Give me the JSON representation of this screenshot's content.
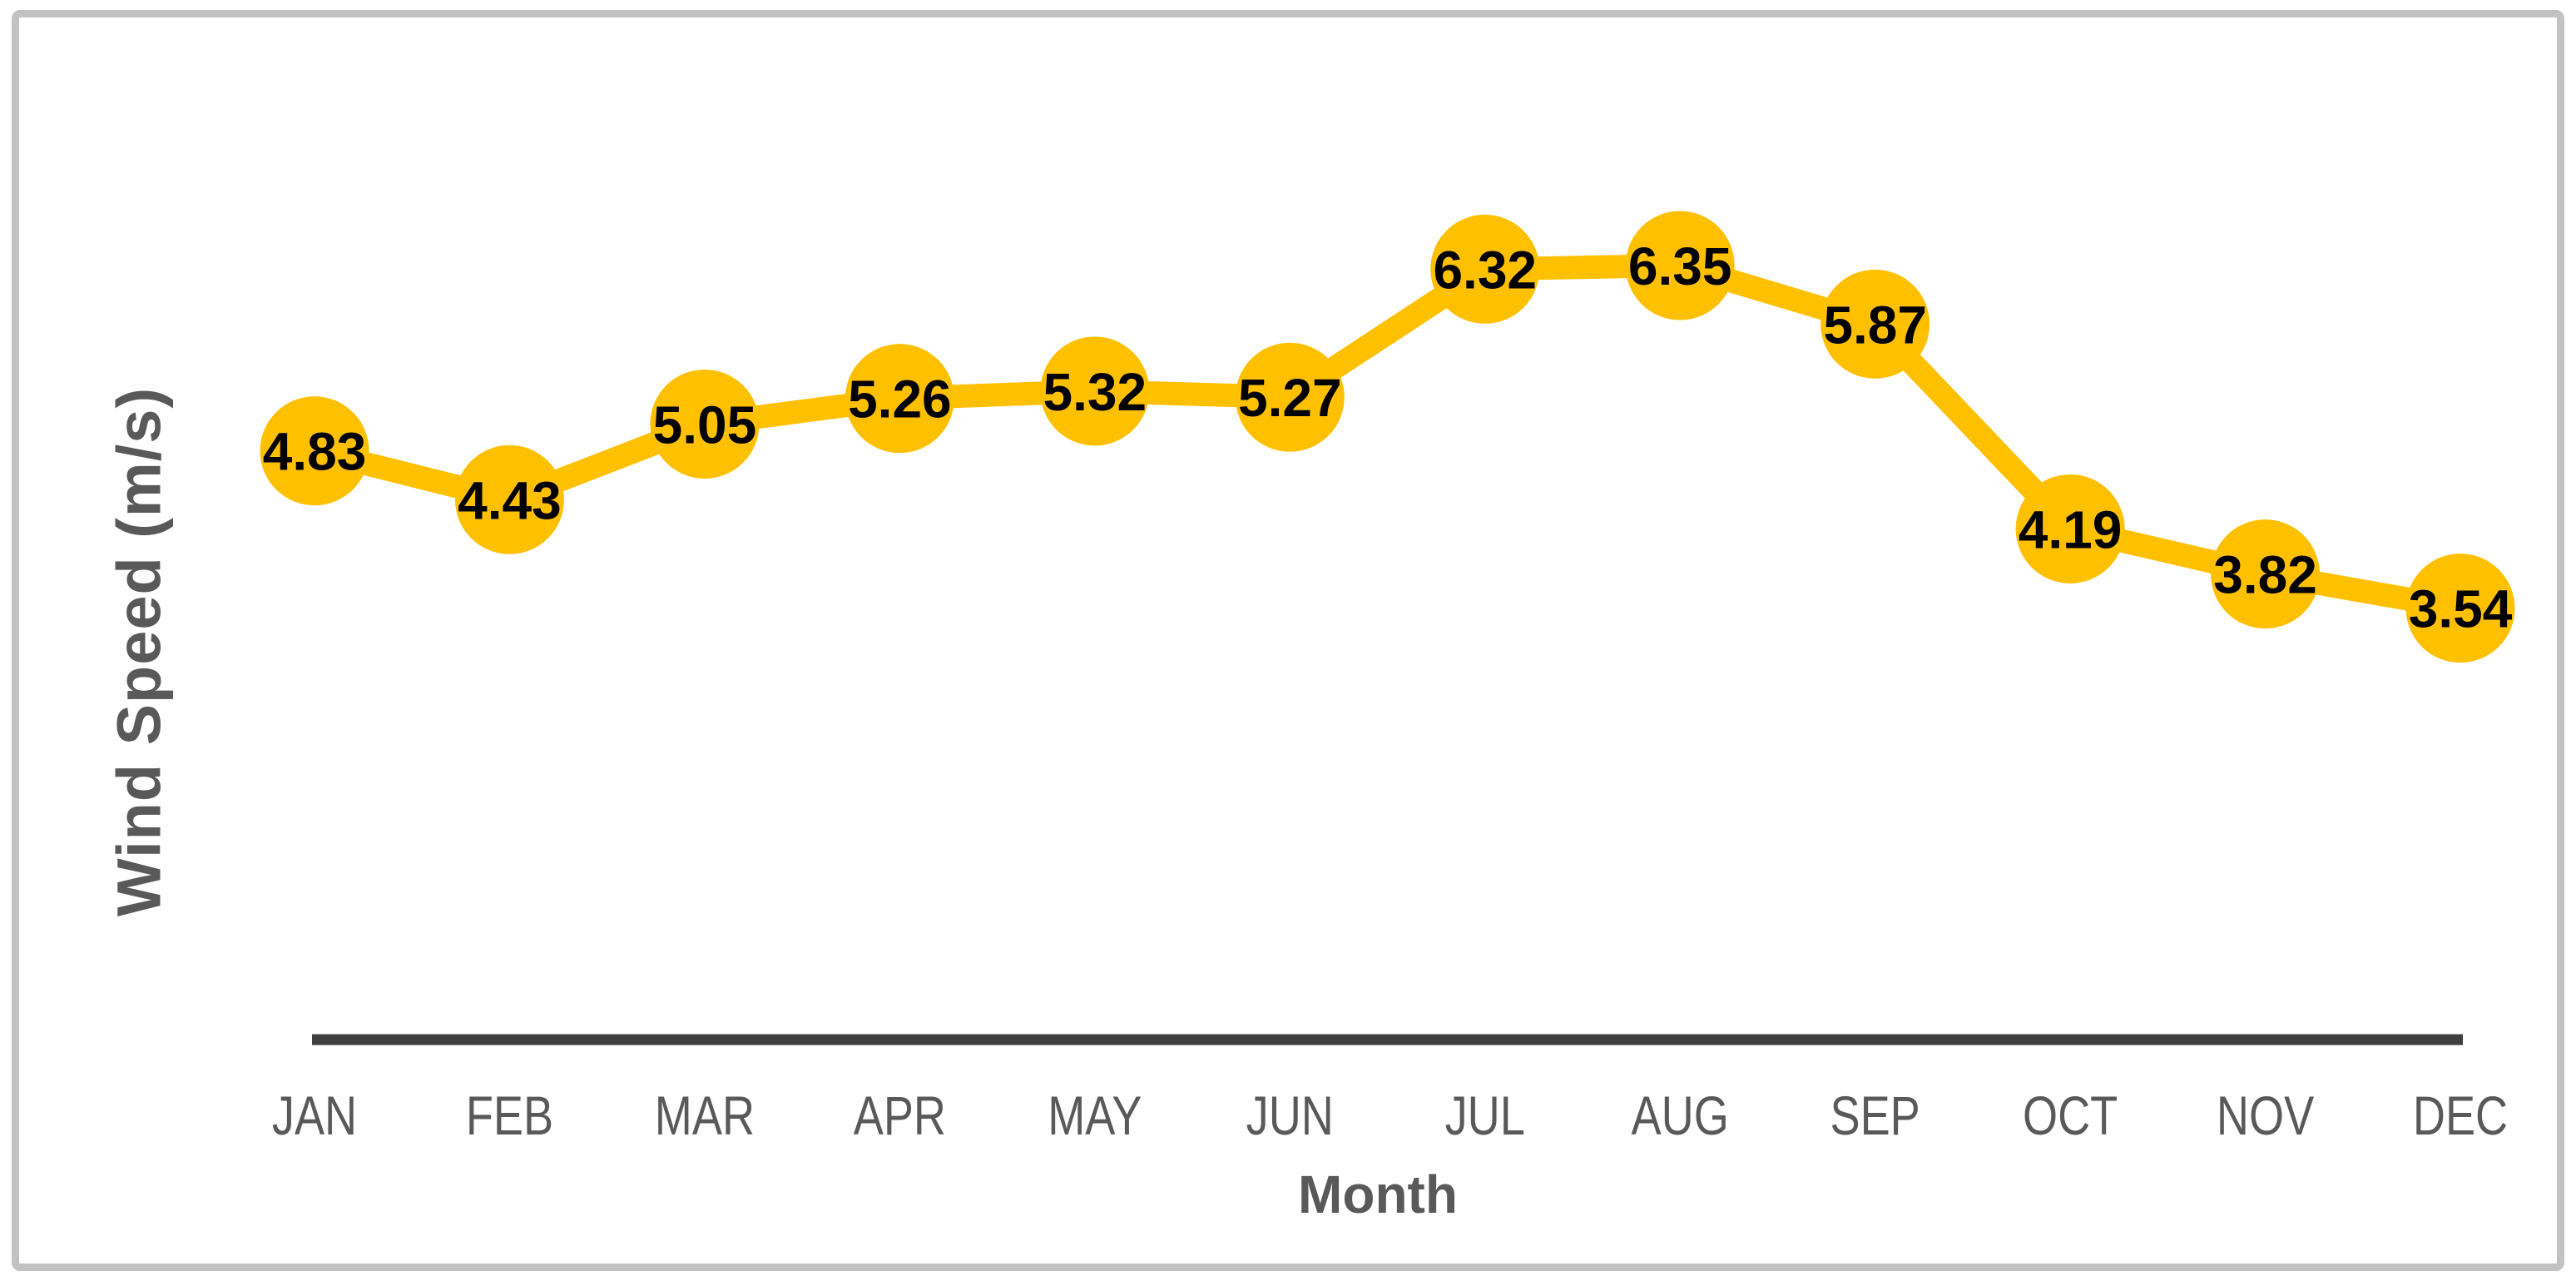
{
  "chart_data": {
    "type": "line",
    "title": "",
    "categories": [
      "JAN",
      "FEB",
      "MAR",
      "APR",
      "MAY",
      "JUN",
      "JUL",
      "AUG",
      "SEP",
      "OCT",
      "NOV",
      "DEC"
    ],
    "series": [
      {
        "name": "Wind Speed",
        "values": [
          4.83,
          4.43,
          5.05,
          5.26,
          5.32,
          5.27,
          6.32,
          6.35,
          5.87,
          4.19,
          3.82,
          3.54
        ],
        "data_labels": [
          "4.83",
          "4.43",
          "5.05",
          "5.26",
          "5.32",
          "5.27",
          "6.32",
          "6.35",
          "5.87",
          "4.19",
          "3.82",
          "3.54"
        ]
      }
    ],
    "xlabel": "Month",
    "ylabel": "Wind Speed (m/s)",
    "ylim": [
      3.0,
      7.0
    ],
    "grid": false,
    "legend": false,
    "y_axis_ticks_visible": false,
    "marker_style": "large-filled-circle",
    "data_label_position": "center",
    "colors": {
      "line": "#FFC000",
      "marker": "#FFC000",
      "data_label": "#000000",
      "axis_line": "#3F3F3F",
      "tick_label": "#595959",
      "axis_title": "#595959",
      "border": "#C2C2C2",
      "background": "#FFFFFF"
    }
  }
}
